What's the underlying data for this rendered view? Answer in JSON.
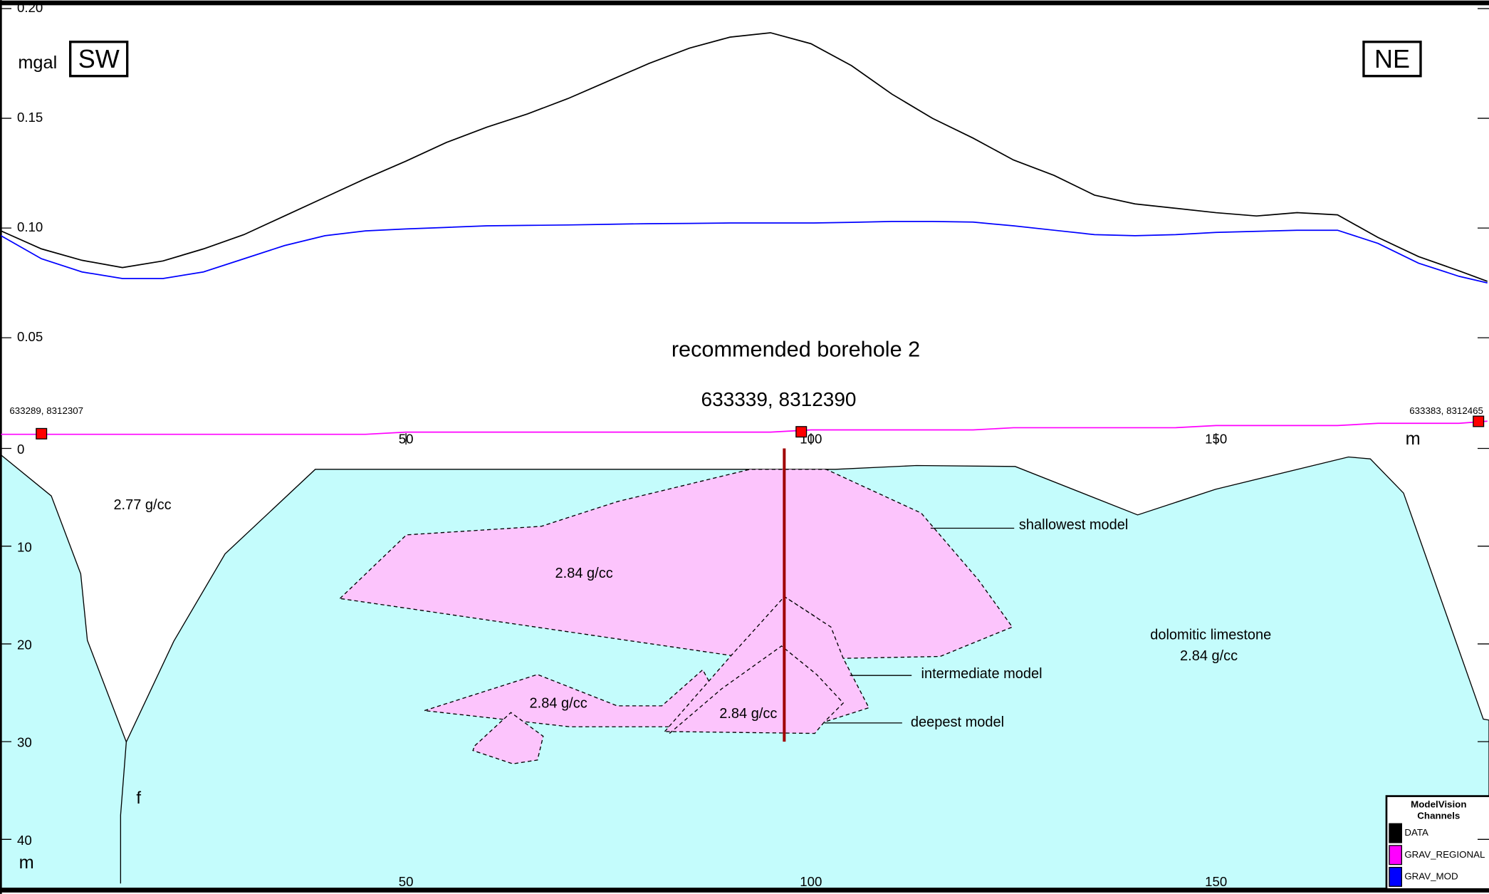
{
  "chart_data": {
    "type": "line",
    "y_label": "mgal",
    "x_unit": "m",
    "left_direction": "SW",
    "right_direction": "NE",
    "annotation": "recommended borehole 2",
    "x": [
      0,
      5,
      10,
      15,
      20,
      25,
      30,
      35,
      40,
      45,
      50,
      55,
      60,
      65,
      70,
      75,
      80,
      85,
      90,
      95,
      100,
      105,
      110,
      115,
      120,
      125,
      130,
      135,
      140,
      145,
      150,
      155,
      160,
      165,
      170,
      175,
      180,
      183.5
    ],
    "series": [
      {
        "name": "DATA",
        "color": "#000000",
        "values": [
          0.0987,
          0.0905,
          0.0853,
          0.082,
          0.085,
          0.0905,
          0.097,
          0.1055,
          0.114,
          0.1225,
          0.1305,
          0.139,
          0.146,
          0.152,
          0.159,
          0.167,
          0.175,
          0.182,
          0.187,
          0.189,
          0.184,
          0.174,
          0.161,
          0.15,
          0.141,
          0.131,
          0.124,
          0.115,
          0.111,
          0.109,
          0.107,
          0.1055,
          0.107,
          0.106,
          0.0957,
          0.087,
          0.0805,
          0.0757
        ]
      },
      {
        "name": "GRAV_REGIONAL",
        "color": "#ff00ff",
        "values": [
          0.006,
          0.006,
          0.006,
          0.006,
          0.006,
          0.006,
          0.006,
          0.006,
          0.006,
          0.006,
          0.007,
          0.007,
          0.007,
          0.007,
          0.007,
          0.007,
          0.007,
          0.007,
          0.007,
          0.007,
          0.008,
          0.008,
          0.008,
          0.008,
          0.008,
          0.009,
          0.009,
          0.009,
          0.009,
          0.009,
          0.01,
          0.01,
          0.01,
          0.01,
          0.011,
          0.011,
          0.011,
          0.012
        ]
      },
      {
        "name": "GRAV_MOD",
        "color": "#0000ff",
        "values": [
          0.0965,
          0.086,
          0.08,
          0.077,
          0.077,
          0.08,
          0.086,
          0.092,
          0.0965,
          0.0987,
          0.0996,
          0.1003,
          0.101,
          0.1012,
          0.1014,
          0.1017,
          0.102,
          0.1021,
          0.1023,
          0.1023,
          0.1023,
          0.1026,
          0.103,
          0.103,
          0.1027,
          0.101,
          0.099,
          0.097,
          0.0965,
          0.097,
          0.098,
          0.0985,
          0.099,
          0.099,
          0.093,
          0.084,
          0.078,
          0.075
        ]
      }
    ],
    "xlim": [
      0,
      183.7
    ],
    "xticks": [
      50,
      100,
      150
    ],
    "ylim": [
      0,
      0.2
    ],
    "yticks": [
      0.05,
      {
        "value": 0.1,
        "label": "0.10"
      },
      0.15,
      {
        "value": 0.2,
        "label": "0.20"
      }
    ],
    "stations": [
      {
        "x": 5,
        "label": "633289, 8312307"
      },
      {
        "x": 98.8,
        "label": "633339, 8312390"
      },
      {
        "x": 182.4,
        "label": "633383, 8312465"
      }
    ],
    "legend_title": "ModelVision Channels",
    "section": {
      "depth_lim": [
        0,
        45
      ],
      "depth_ticks": [
        0,
        10,
        20,
        30,
        40
      ],
      "depth_unit": "m",
      "borehole_x": 96.7,
      "borehole_depth": 30,
      "labels": {
        "host": "2.77 g/cc",
        "shallow": "2.84 g/cc",
        "left_body": "2.84 g/cc",
        "deep": "2.84 g/cc",
        "limestone": "dolomitic limestone",
        "limestone_density": "2.84 g/cc",
        "shallowest_model": "shallowest model",
        "intermediate_model": "intermediate model",
        "deepest_model": "deepest model",
        "fault": "f"
      }
    }
  }
}
